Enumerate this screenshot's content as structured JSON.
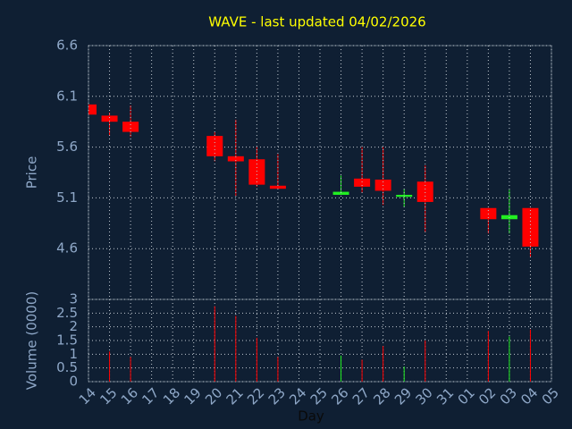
{
  "chart_data": {
    "type": "candlestick",
    "title": "WAVE - last updated 04/02/2026",
    "x_label": "Day",
    "y_label": "Price",
    "volume_label": "Volume (0000)",
    "categories": [
      "14",
      "15",
      "16",
      "17",
      "18",
      "19",
      "20",
      "21",
      "22",
      "23",
      "24",
      "25",
      "26",
      "27",
      "28",
      "29",
      "30",
      "31",
      "01",
      "02",
      "03",
      "04",
      "05"
    ],
    "open": [
      6.02,
      5.91,
      5.85,
      null,
      null,
      null,
      5.71,
      5.51,
      5.48,
      5.22,
      null,
      null,
      5.13,
      5.29,
      5.28,
      5.11,
      5.26,
      null,
      null,
      5.0,
      4.89,
      5.0,
      null
    ],
    "high": [
      6.02,
      5.94,
      6.01,
      null,
      null,
      null,
      5.75,
      5.87,
      5.6,
      5.53,
      null,
      null,
      5.32,
      5.6,
      5.6,
      5.19,
      5.42,
      null,
      null,
      5.0,
      5.18,
      5.0,
      null
    ],
    "low": [
      5.92,
      5.71,
      5.7,
      null,
      null,
      null,
      5.46,
      5.12,
      5.21,
      5.19,
      null,
      null,
      5.13,
      5.15,
      5.03,
      5.01,
      4.76,
      null,
      null,
      4.75,
      4.75,
      4.52,
      null
    ],
    "close": [
      5.92,
      5.85,
      5.75,
      null,
      null,
      null,
      5.51,
      5.46,
      5.23,
      5.19,
      null,
      null,
      5.16,
      5.21,
      5.17,
      5.13,
      5.06,
      null,
      null,
      4.89,
      4.93,
      4.62,
      null
    ],
    "volume": [
      null,
      1.1,
      0.9,
      null,
      null,
      null,
      2.75,
      2.4,
      1.6,
      0.9,
      null,
      null,
      0.95,
      0.8,
      1.3,
      0.55,
      1.5,
      null,
      null,
      1.85,
      1.65,
      1.9,
      null
    ],
    "up_color": "#22ee22",
    "down_color": "#ff0000",
    "ylim": [
      4.1,
      6.6
    ],
    "yticks": [
      4.6,
      5.1,
      5.6,
      6.1,
      6.6
    ],
    "volume_ylim": [
      0,
      3
    ],
    "volume_yticks": [
      0,
      0.5,
      1,
      1.5,
      2,
      2.5,
      3
    ],
    "grid": true
  }
}
